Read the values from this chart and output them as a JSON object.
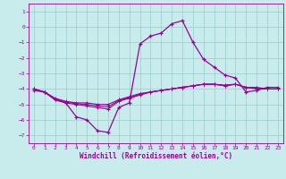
{
  "xlabel": "Windchill (Refroidissement éolien,°C)",
  "ylabel": "",
  "background_color": "#c8ecec",
  "line_color": "#990099",
  "grid_color": "#99cccc",
  "xlim": [
    -0.5,
    23.5
  ],
  "ylim": [
    -7.5,
    1.5
  ],
  "yticks": [
    1,
    0,
    -1,
    -2,
    -3,
    -4,
    -5,
    -6,
    -7
  ],
  "xticks": [
    0,
    1,
    2,
    3,
    4,
    5,
    6,
    7,
    8,
    9,
    10,
    11,
    12,
    13,
    14,
    15,
    16,
    17,
    18,
    19,
    20,
    21,
    22,
    23
  ],
  "lines": [
    [
      -4.1,
      -4.2,
      -4.7,
      -4.9,
      -5.8,
      -6.0,
      -6.7,
      -6.8,
      -5.2,
      -4.9,
      -1.1,
      -0.6,
      -0.4,
      0.2,
      0.4,
      -1.0,
      -2.1,
      -2.6,
      -3.1,
      -3.3,
      -4.2,
      -4.1,
      -3.9,
      -3.9
    ],
    [
      -4.0,
      -4.2,
      -4.7,
      -4.9,
      -5.0,
      -5.1,
      -5.2,
      -5.3,
      -4.8,
      -4.6,
      -4.4,
      -4.2,
      -4.1,
      -4.0,
      -3.9,
      -3.8,
      -3.7,
      -3.7,
      -3.8,
      -3.7,
      -3.9,
      -4.0,
      -4.0,
      -4.0
    ],
    [
      -4.0,
      -4.2,
      -4.65,
      -4.85,
      -4.95,
      -5.0,
      -5.1,
      -5.15,
      -4.75,
      -4.55,
      -4.35,
      -4.2,
      -4.1,
      -4.0,
      -3.9,
      -3.8,
      -3.7,
      -3.7,
      -3.75,
      -3.7,
      -3.9,
      -3.95,
      -4.0,
      -4.0
    ],
    [
      -4.0,
      -4.2,
      -4.6,
      -4.8,
      -4.9,
      -4.9,
      -5.0,
      -5.0,
      -4.7,
      -4.5,
      -4.3,
      -4.2,
      -4.1,
      -4.0,
      -3.9,
      -3.8,
      -3.7,
      -3.7,
      -3.8,
      -3.7,
      -3.9,
      -3.9,
      -4.0,
      -4.0
    ]
  ]
}
